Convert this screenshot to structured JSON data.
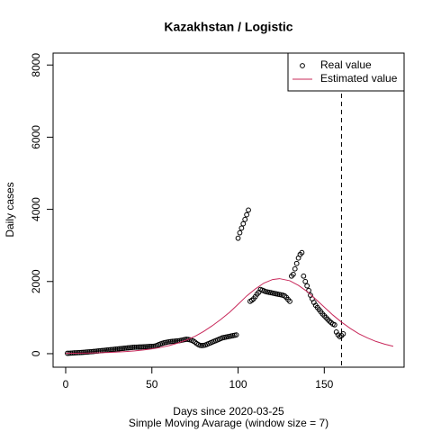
{
  "chart_data": {
    "type": "line",
    "title": "Kazakhstan / Logistic",
    "x_label": "Days since 2020-03-25",
    "subtitle": "Simple Moving Avarage (window size = 7)",
    "y_label": "Daily cases",
    "xlim": [
      -7.3,
      196.3
    ],
    "ylim": [
      -375,
      8330
    ],
    "xticks": [
      0,
      50,
      100,
      150
    ],
    "yticks": [
      0,
      2000,
      4000,
      6000,
      8000
    ],
    "vline": 160,
    "legend": "top-right",
    "series": [
      {
        "name": "Real value",
        "mode": "points",
        "color": "#000000",
        "x": [
          1,
          2,
          3,
          4,
          5,
          6,
          7,
          8,
          9,
          10,
          11,
          12,
          13,
          14,
          15,
          16,
          17,
          18,
          19,
          20,
          21,
          22,
          23,
          24,
          25,
          26,
          27,
          28,
          29,
          30,
          31,
          32,
          33,
          34,
          35,
          36,
          37,
          38,
          39,
          40,
          41,
          42,
          43,
          44,
          45,
          46,
          47,
          48,
          49,
          50,
          51,
          52,
          53,
          54,
          55,
          56,
          57,
          58,
          59,
          60,
          61,
          62,
          63,
          64,
          65,
          66,
          67,
          68,
          69,
          70,
          71,
          72,
          73,
          74,
          75,
          76,
          77,
          78,
          79,
          80,
          81,
          82,
          83,
          84,
          85,
          86,
          87,
          88,
          89,
          90,
          91,
          92,
          93,
          94,
          95,
          96,
          97,
          98,
          99,
          100,
          101,
          102,
          103,
          104,
          105,
          106,
          107,
          108,
          109,
          110,
          111,
          112,
          113,
          114,
          115,
          116,
          117,
          118,
          119,
          120,
          121,
          122,
          123,
          124,
          125,
          126,
          127,
          128,
          129,
          130,
          131,
          132,
          133,
          134,
          135,
          136,
          137,
          138,
          139,
          140,
          141,
          142,
          143,
          144,
          145,
          146,
          147,
          148,
          149,
          150,
          151,
          152,
          153,
          154,
          155,
          156,
          157,
          158,
          159,
          160,
          161
        ],
        "values": [
          10,
          12,
          15,
          18,
          22,
          25,
          28,
          30,
          33,
          36,
          40,
          44,
          48,
          52,
          55,
          60,
          65,
          70,
          75,
          80,
          85,
          90,
          95,
          100,
          105,
          110,
          115,
          120,
          125,
          130,
          135,
          140,
          145,
          150,
          155,
          160,
          165,
          170,
          175,
          178,
          180,
          182,
          185,
          187,
          190,
          192,
          195,
          197,
          200,
          200,
          205,
          215,
          230,
          250,
          270,
          285,
          300,
          310,
          320,
          330,
          335,
          340,
          345,
          350,
          355,
          360,
          370,
          380,
          390,
          400,
          395,
          385,
          370,
          350,
          320,
          280,
          250,
          230,
          225,
          230,
          240,
          260,
          280,
          300,
          320,
          340,
          360,
          380,
          400,
          420,
          440,
          450,
          460,
          470,
          480,
          490,
          500,
          510,
          520,
          3200,
          3350,
          3480,
          3600,
          3720,
          3850,
          3980,
          1450,
          1480,
          1520,
          1580,
          1650,
          1700,
          1780,
          1760,
          1740,
          1720,
          1710,
          1700,
          1690,
          1680,
          1670,
          1660,
          1650,
          1640,
          1630,
          1620,
          1600,
          1560,
          1500,
          1450,
          2150,
          2200,
          2350,
          2500,
          2650,
          2750,
          2800,
          2150,
          2000,
          1880,
          1750,
          1620,
          1520,
          1420,
          1340,
          1280,
          1220,
          1160,
          1100,
          1050,
          1000,
          950,
          900,
          860,
          820,
          800,
          600,
          520,
          470,
          500,
          550
        ]
      },
      {
        "name": "Estimated value",
        "mode": "line",
        "color": "#c8285a",
        "x": [
          0,
          5,
          10,
          15,
          20,
          25,
          30,
          35,
          40,
          45,
          50,
          55,
          60,
          65,
          70,
          75,
          80,
          85,
          90,
          95,
          100,
          105,
          110,
          115,
          120,
          124,
          130,
          135,
          140,
          145,
          150,
          155,
          160,
          165,
          170,
          175,
          180,
          185,
          190
        ],
        "values": [
          9,
          11,
          15,
          19,
          26,
          34,
          45,
          59,
          77,
          102,
          132,
          172,
          224,
          292,
          377,
          480,
          614,
          773,
          950,
          1143,
          1368,
          1600,
          1793,
          1957,
          2055,
          2080,
          2021,
          1893,
          1725,
          1512,
          1290,
          1070,
          874,
          703,
          553,
          438,
          338,
          265,
          204
        ]
      }
    ]
  }
}
